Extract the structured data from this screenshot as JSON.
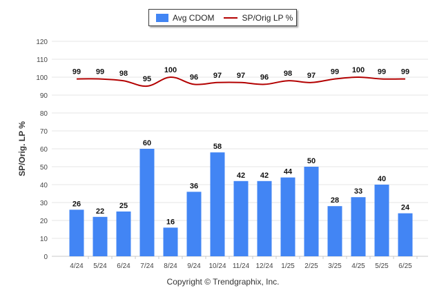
{
  "legend": {
    "bar_label": "Avg CDOM",
    "line_label": "SP/Orig LP %"
  },
  "ylabel": "SP/Orig. LP %",
  "copyright": "Copyright © Trendgraphix, Inc.",
  "colors": {
    "bar": "#4285f4",
    "line": "#b30000",
    "grid": "#e6e6e6"
  },
  "chart_data": {
    "type": "bar",
    "categories": [
      "4/24",
      "5/24",
      "6/24",
      "7/24",
      "8/24",
      "9/24",
      "10/24",
      "11/24",
      "12/24",
      "1/25",
      "2/25",
      "3/25",
      "4/25",
      "5/25",
      "6/25"
    ],
    "series": [
      {
        "name": "Avg CDOM",
        "type": "bar",
        "values": [
          26,
          22,
          25,
          60,
          16,
          36,
          58,
          42,
          42,
          44,
          50,
          28,
          33,
          40,
          24
        ]
      },
      {
        "name": "SP/Orig LP %",
        "type": "line",
        "values": [
          99,
          99,
          98,
          95,
          100,
          96,
          97,
          97,
          96,
          98,
          97,
          99,
          100,
          99,
          99
        ]
      }
    ],
    "ylabel": "SP/Orig. LP %",
    "ylim": [
      0,
      120
    ],
    "yticks": [
      0,
      10,
      20,
      30,
      40,
      50,
      60,
      70,
      80,
      90,
      100,
      110,
      120
    ],
    "grid": true,
    "legend_position": "top"
  }
}
